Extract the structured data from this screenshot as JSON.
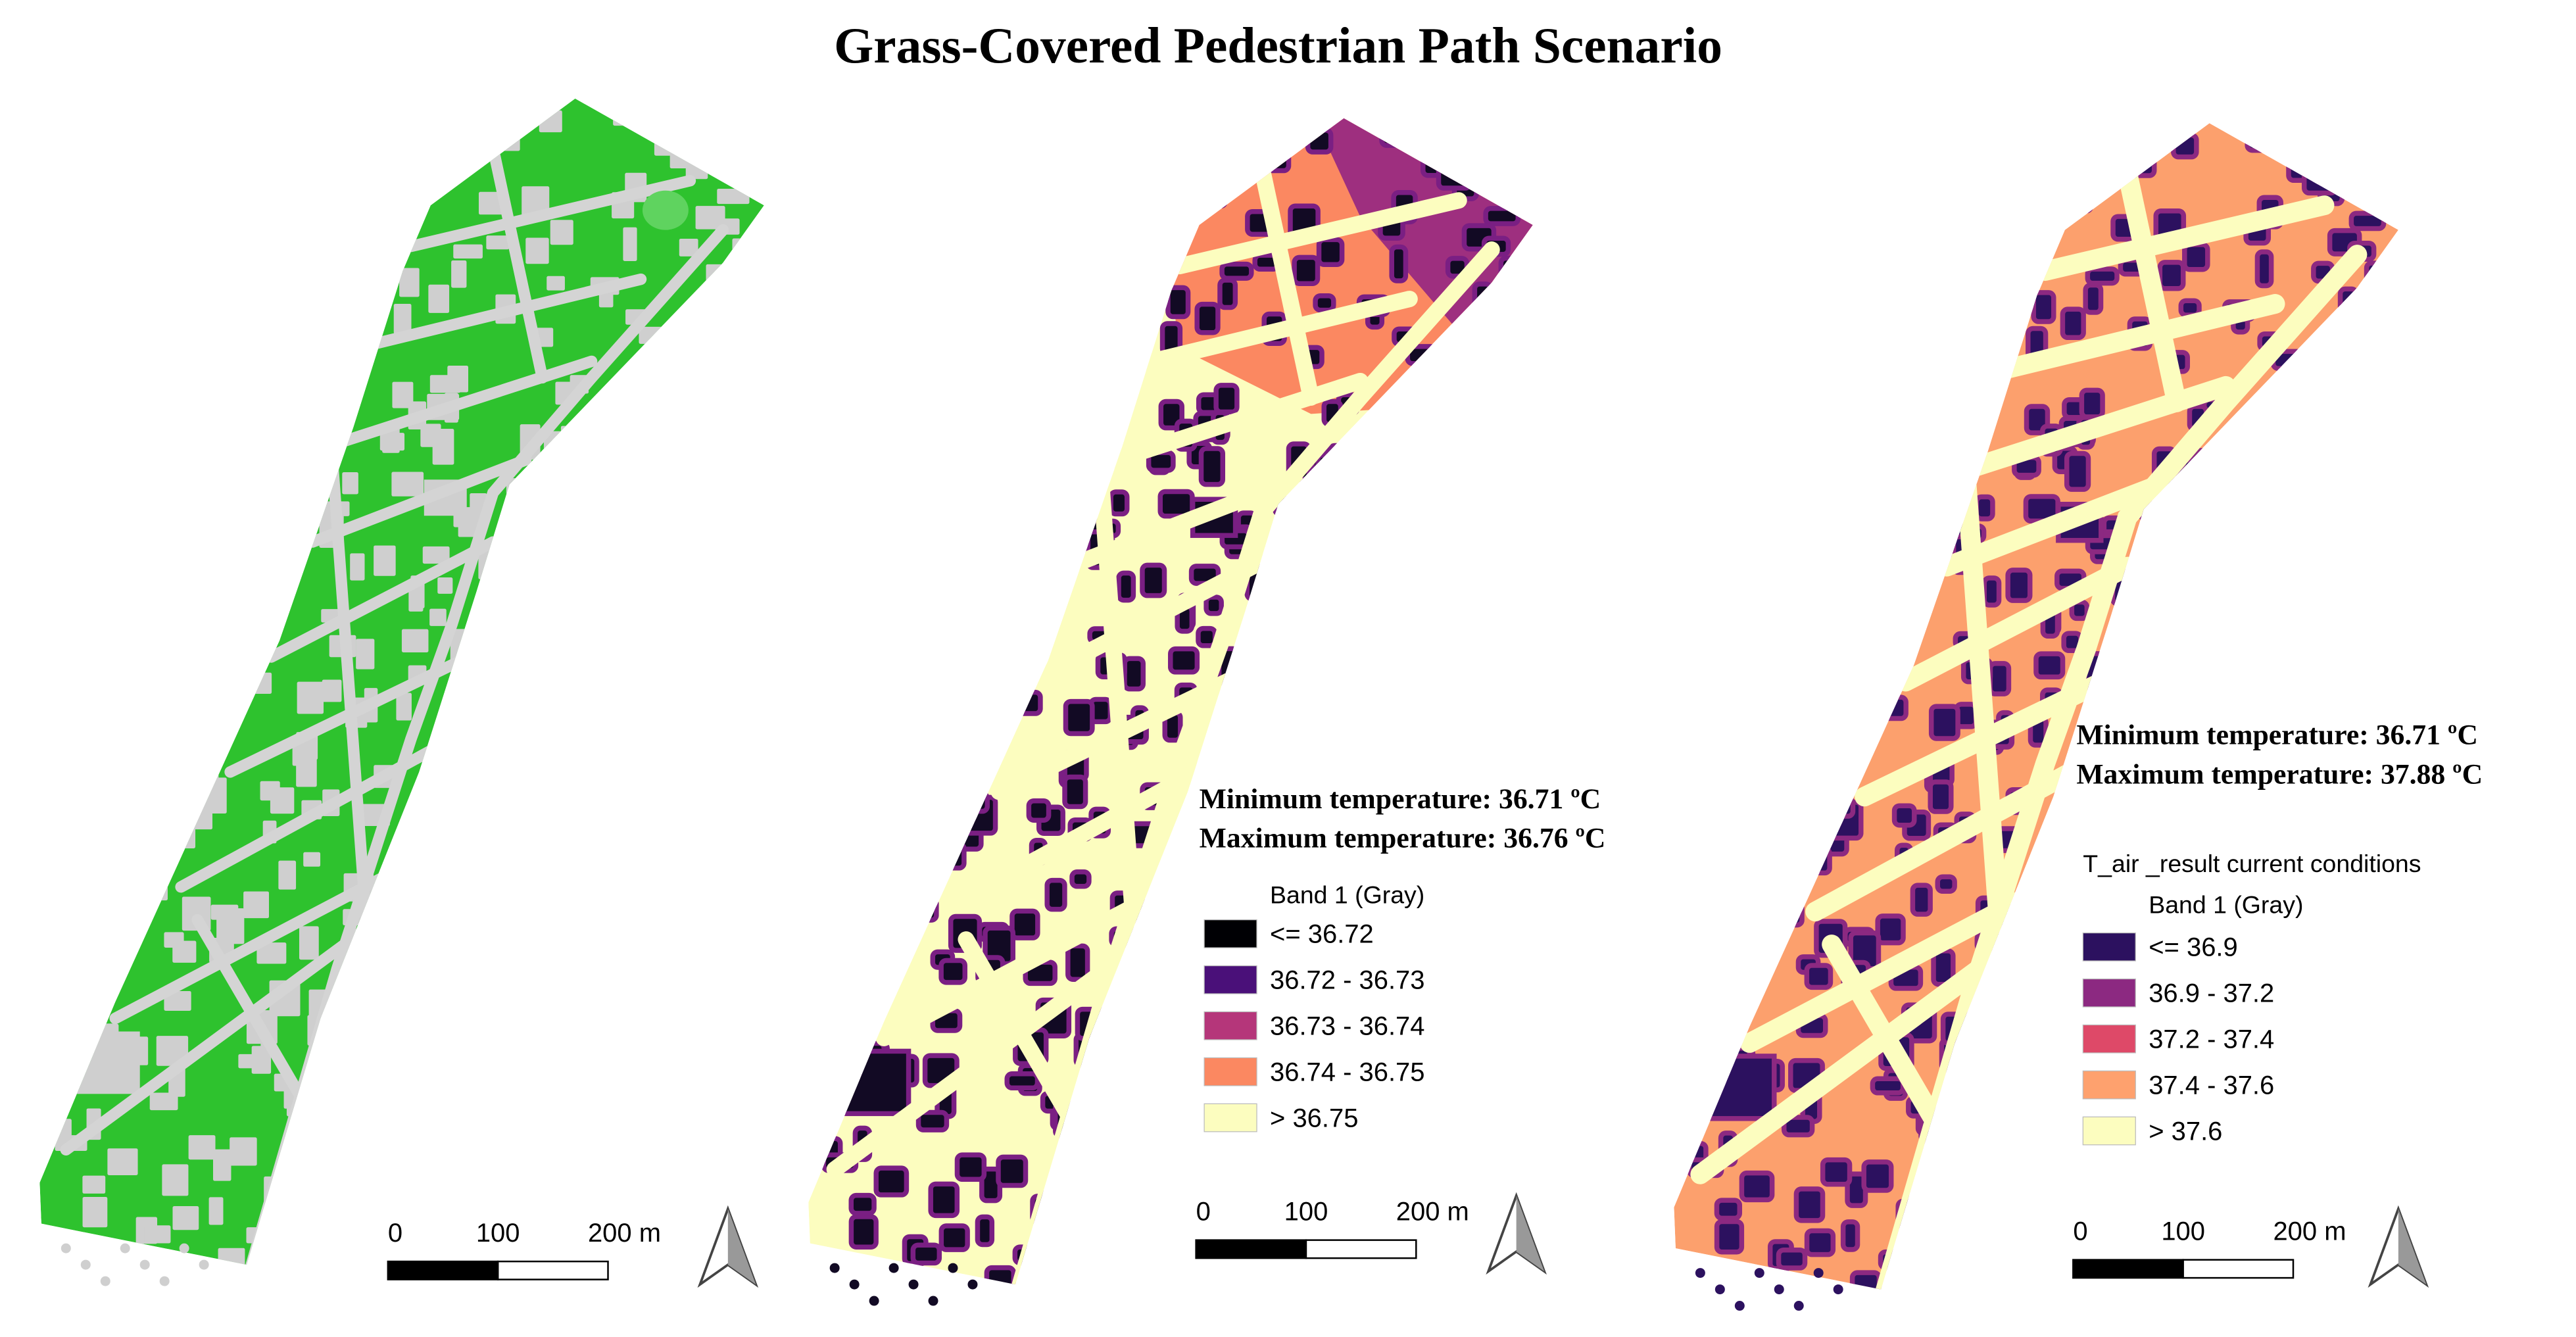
{
  "title": "Grass-Covered Pedestrian Path Scenario",
  "panels": [
    {
      "scale_bar": {
        "labels": [
          "0",
          "100",
          "200 m"
        ]
      }
    },
    {
      "stats": [
        "Minimum temperature: 36.71 ºC",
        "Maximum temperature: 36.76 ºC"
      ],
      "legend": {
        "title": "Band 1 (Gray)",
        "entries": [
          {
            "label": "<= 36.72",
            "color": "#000004"
          },
          {
            "label": "36.72 - 36.73",
            "color": "#4a1079"
          },
          {
            "label": "36.73 - 36.74",
            "color": "#b5367a"
          },
          {
            "label": "36.74 - 36.75",
            "color": "#fb8861"
          },
          {
            "label": "> 36.75",
            "color": "#fcfdbf"
          }
        ]
      },
      "scale_bar": {
        "labels": [
          "0",
          "100",
          "200 m"
        ]
      }
    },
    {
      "stats": [
        "Minimum temperature: 36.71 ºC",
        "Maximum temperature: 37.88 ºC"
      ],
      "legend": {
        "caption": "T_air _result current conditions",
        "title": "Band 1 (Gray)",
        "entries": [
          {
            "label": "<= 36.9",
            "color": "#2c115f"
          },
          {
            "label": "36.9 - 37.2",
            "color": "#8c2981"
          },
          {
            "label": "37.2 - 37.4",
            "color": "#de4968"
          },
          {
            "label": "37.4 - 37.6",
            "color": "#fea16e"
          },
          {
            "label": "> 37.6",
            "color": "#fcfdbf"
          }
        ]
      },
      "scale_bar": {
        "labels": [
          "0",
          "100",
          "200 m"
        ]
      }
    }
  ]
}
